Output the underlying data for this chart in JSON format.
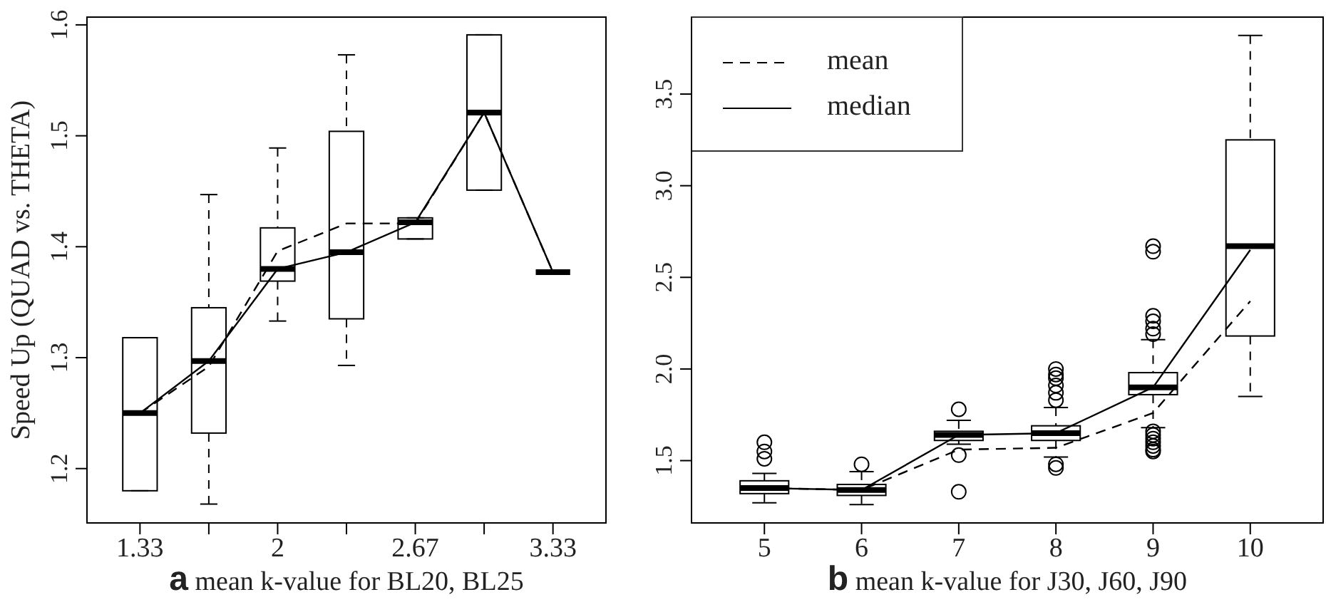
{
  "chart_data": [
    {
      "type": "box",
      "ylabel": "Speed Up (QUAD vs. THETA)",
      "xlabel": "a mean k-value for BL20, BL25",
      "categories": [
        "1.33",
        null,
        "2",
        null,
        "2.67",
        null,
        "3.33"
      ],
      "boxes": [
        {
          "low": 1.18,
          "q1": 1.18,
          "median": 1.25,
          "q3": 1.318,
          "high": 1.318
        },
        {
          "low": 1.168,
          "q1": 1.232,
          "median": 1.297,
          "q3": 1.345,
          "high": 1.447
        },
        {
          "low": 1.333,
          "q1": 1.369,
          "median": 1.38,
          "q3": 1.417,
          "high": 1.489
        },
        {
          "low": 1.293,
          "q1": 1.335,
          "median": 1.395,
          "q3": 1.504,
          "high": 1.573
        },
        {
          "low": 1.407,
          "q1": 1.407,
          "median": 1.422,
          "q3": 1.426,
          "high": 1.426
        },
        {
          "low": 1.451,
          "q1": 1.451,
          "median": 1.521,
          "q3": 1.591,
          "high": 1.591
        },
        {
          "low": 1.377,
          "q1": 1.377,
          "median": 1.377,
          "q3": 1.377,
          "high": 1.377
        }
      ],
      "color": "#000000",
      "series": [
        {
          "type": "line",
          "line_style": "dashed",
          "color": "#000000",
          "values": [
            1.25,
            1.292,
            1.396,
            1.421,
            1.421,
            1.521,
            1.377
          ]
        },
        {
          "type": "line",
          "line_style": "solid",
          "color": "#000000",
          "values": [
            1.25,
            1.297,
            1.38,
            1.395,
            1.422,
            1.521,
            1.377
          ]
        }
      ],
      "marker": "none",
      "grid": false,
      "ylim": [
        1.151,
        1.607
      ],
      "yticks": [
        1.2,
        1.3,
        1.4,
        1.5,
        1.6
      ]
    },
    {
      "type": "box",
      "xlabel": "b mean k-value for J30, J60, J90",
      "categories": [
        "5",
        "6",
        "7",
        "8",
        "9",
        "10"
      ],
      "boxes": [
        {
          "low": 1.27,
          "q1": 1.32,
          "median": 1.35,
          "q3": 1.39,
          "high": 1.43,
          "outliers": [
            1.6,
            1.55,
            1.51
          ]
        },
        {
          "low": 1.26,
          "q1": 1.31,
          "median": 1.34,
          "q3": 1.37,
          "high": 1.44,
          "outliers": [
            1.48
          ]
        },
        {
          "low": 1.59,
          "q1": 1.61,
          "median": 1.64,
          "q3": 1.66,
          "high": 1.72,
          "outliers": [
            1.78,
            1.53,
            1.33
          ]
        },
        {
          "low": 1.52,
          "q1": 1.61,
          "median": 1.65,
          "q3": 1.69,
          "high": 1.79,
          "outliers": [
            2.0,
            1.97,
            1.95,
            1.91,
            1.87,
            1.83,
            1.48,
            1.46
          ]
        },
        {
          "low": 1.68,
          "q1": 1.86,
          "median": 1.9,
          "q3": 1.98,
          "high": 2.16,
          "outliers": [
            2.67,
            2.64,
            2.29,
            2.26,
            2.22,
            2.19,
            1.66,
            1.64,
            1.62,
            1.6,
            1.58,
            1.56,
            1.55
          ]
        },
        {
          "low": 1.85,
          "q1": 2.18,
          "median": 2.67,
          "q3": 3.25,
          "high": 3.82
        }
      ],
      "color": "#000000",
      "series": [
        {
          "type": "line",
          "name": "mean",
          "line_style": "dashed",
          "color": "#000000",
          "values": [
            1.35,
            1.34,
            1.56,
            1.57,
            1.76,
            2.37
          ]
        },
        {
          "type": "line",
          "name": "median",
          "line_style": "solid",
          "color": "#000000",
          "values": [
            1.35,
            1.34,
            1.64,
            1.65,
            1.9,
            2.65
          ]
        }
      ],
      "marker": "none",
      "grid": false,
      "legend": "top left",
      "ylim": [
        1.16,
        3.92
      ],
      "yticks": [
        {
          "value": 1.5,
          "label": "1.5"
        },
        {
          "value": 2,
          "label": "2.0"
        },
        {
          "value": 2.5,
          "label": "2.5"
        },
        {
          "value": 3,
          "label": "3.0"
        },
        {
          "value": 3.5,
          "label": "3.5"
        }
      ]
    }
  ]
}
